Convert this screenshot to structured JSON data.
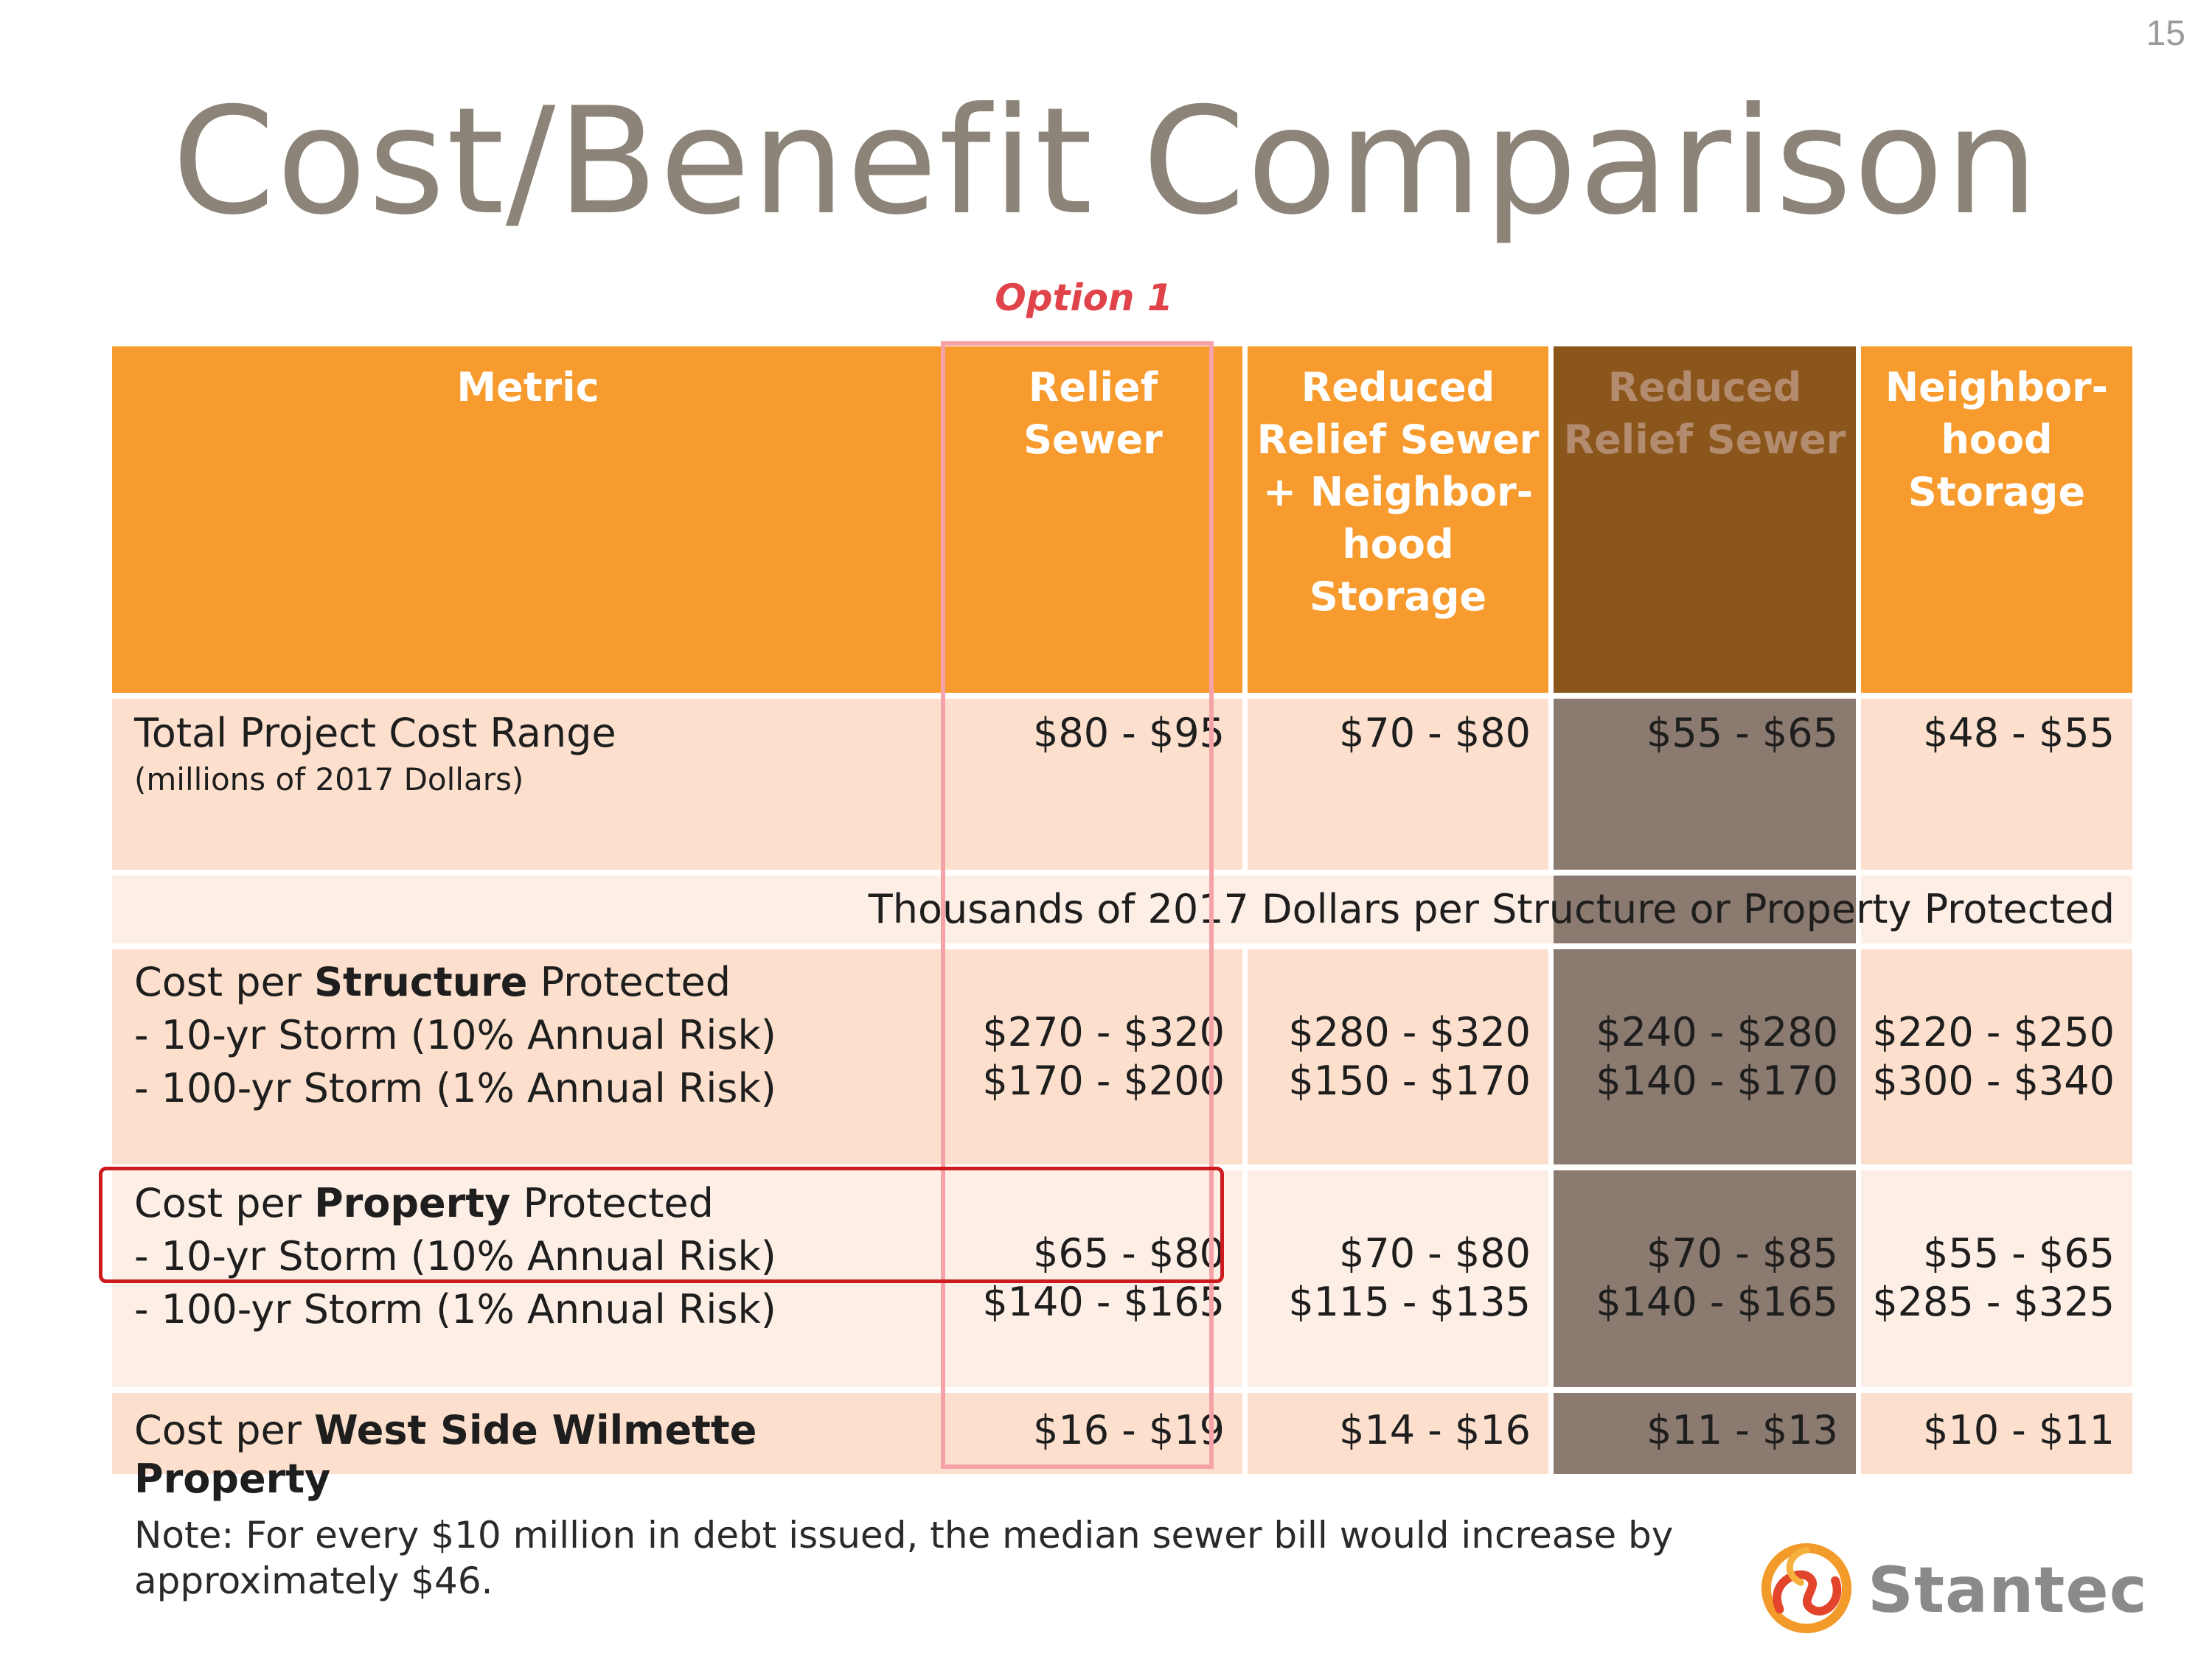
{
  "page_number": "15",
  "title": "Cost/Benefit Comparison",
  "option_label": "Option 1",
  "table": {
    "headers": [
      [
        "Metric"
      ],
      [
        "Relief",
        "Sewer"
      ],
      [
        "Reduced",
        "Relief Sewer",
        "+ Neighbor-",
        "hood",
        "Storage"
      ],
      [
        "Reduced",
        "Relief Sewer"
      ],
      [
        "Neighbor-",
        "hood",
        "Storage"
      ]
    ],
    "total_cost": {
      "label": "Total Project Cost Range",
      "sublabel": "(millions of 2017 Dollars)",
      "values": [
        "$80 - $95",
        "$70 - $80",
        "$55 - $65",
        "$48 - $55"
      ]
    },
    "thousands_note": "Thousands of 2017 Dollars per Structure or Property Protected",
    "structure": {
      "prefix": "Cost per ",
      "bold": "Structure",
      "suffix": " Protected",
      "line_10yr": "- 10-yr Storm (10% Annual Risk)",
      "line_100yr": "- 100-yr Storm (1% Annual Risk)",
      "values_10yr": [
        "$270 - $320",
        "$280 - $320",
        "$240 - $280",
        "$220 - $250"
      ],
      "values_100yr": [
        "$170 - $200",
        "$150 - $170",
        "$140 - $170",
        "$300 - $340"
      ]
    },
    "property": {
      "prefix": "Cost per ",
      "bold": "Property",
      "suffix": " Protected",
      "line_10yr": "- 10-yr Storm (10% Annual Risk)",
      "line_100yr": "- 100-yr Storm (1% Annual Risk)",
      "values_10yr": [
        "$65 - $80",
        "$70 - $80",
        "$70 - $85",
        "$55 - $65"
      ],
      "values_100yr": [
        "$140 - $165",
        "$115 - $135",
        "$140 - $165",
        "$285 - $325"
      ]
    },
    "west_side": {
      "prefix": "Cost per ",
      "bold": "West Side Wilmette Property",
      "values": [
        "$16 - $19",
        "$14 - $16",
        "$11 - $13",
        "$10 - $11"
      ]
    }
  },
  "note_lines": [
    "Note:  For every $10 million in debt issued, the median sewer bill would increase by",
    "approximately $46."
  ],
  "logo_text": "Stantec",
  "colors": {
    "header_orange": "#f79b2e",
    "header_dim": "#8a561c",
    "row_peach": "#fce0cd",
    "row_light": "#fdefe6",
    "dark_column": "#8b7a6f",
    "option_red": "#e0444a",
    "title_gray": "#8c8478"
  }
}
